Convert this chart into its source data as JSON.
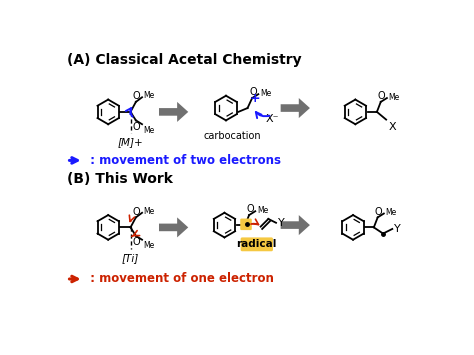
{
  "bg_color": "#ffffff",
  "title_A": "(A) Classical Acetal Chemistry",
  "title_B": "(B) This Work",
  "legend_A": " : movement of two electrons",
  "legend_B": " : movement of one electron",
  "legend_A_color": "#1a1aff",
  "legend_B_color": "#cc2200",
  "gray_arrow_color": "#707070",
  "carbocation_label": "carbocation",
  "radical_label": "radical",
  "radical_bg": "#f5c842",
  "M_label": "[M]+",
  "Ti_label": "[Ti]",
  "blue_color": "#1a1aff",
  "red_color": "#cc2200",
  "title_fontsize": 10,
  "label_fontsize": 7.5,
  "legend_fontsize": 8.5,
  "bond_lw": 1.3,
  "ring_r": 16
}
